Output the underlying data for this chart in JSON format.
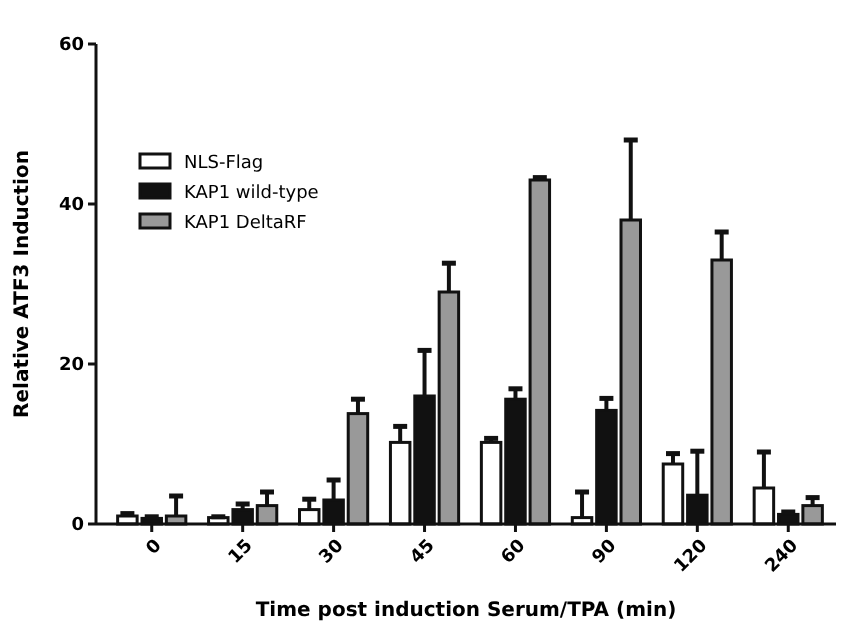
{
  "chart_data": {
    "type": "bar",
    "xlabel": "Time post induction Serum/TPA (min)",
    "ylabel": "Relative ATF3 Induction",
    "categories": [
      "0",
      "15",
      "30",
      "45",
      "60",
      "90",
      "120",
      "240"
    ],
    "ylim": [
      0,
      60
    ],
    "yticks": [
      0,
      20,
      40,
      60
    ],
    "grid": false,
    "legend": "top left",
    "series": [
      {
        "name": "NLS-Flag",
        "color": "#ffffff",
        "values": [
          1.0,
          0.8,
          1.8,
          10.2,
          10.2,
          0.8,
          7.5,
          4.5
        ],
        "errors": [
          [
            1.0,
            1.3
          ],
          [
            0.8,
            0.9
          ],
          [
            1.8,
            3.1
          ],
          [
            10.2,
            12.2
          ],
          [
            10.2,
            10.7
          ],
          [
            0.8,
            4.0
          ],
          [
            7.5,
            8.8
          ],
          [
            4.5,
            9.0
          ]
        ]
      },
      {
        "name": "KAP1 wild-type",
        "color": "#111111",
        "values": [
          0.7,
          1.8,
          3.0,
          16.0,
          15.6,
          14.2,
          3.6,
          1.2
        ],
        "errors": [
          [
            0.7,
            0.9
          ],
          [
            1.8,
            2.5
          ],
          [
            3.0,
            5.5
          ],
          [
            16.0,
            21.7
          ],
          [
            15.6,
            16.9
          ],
          [
            14.2,
            15.7
          ],
          [
            3.6,
            9.1
          ],
          [
            1.2,
            1.5
          ]
        ]
      },
      {
        "name": "KAP1 DeltaRF",
        "color": "#999999",
        "values": [
          1.0,
          2.3,
          13.8,
          29.0,
          43.0,
          38.0,
          33.0,
          2.3
        ],
        "errors": [
          [
            1.0,
            3.5
          ],
          [
            2.3,
            4.0
          ],
          [
            13.8,
            15.6
          ],
          [
            29.0,
            32.6
          ],
          [
            43.0,
            43.3
          ],
          [
            38.0,
            48.0
          ],
          [
            33.0,
            36.5
          ],
          [
            2.3,
            3.3
          ]
        ]
      }
    ]
  }
}
